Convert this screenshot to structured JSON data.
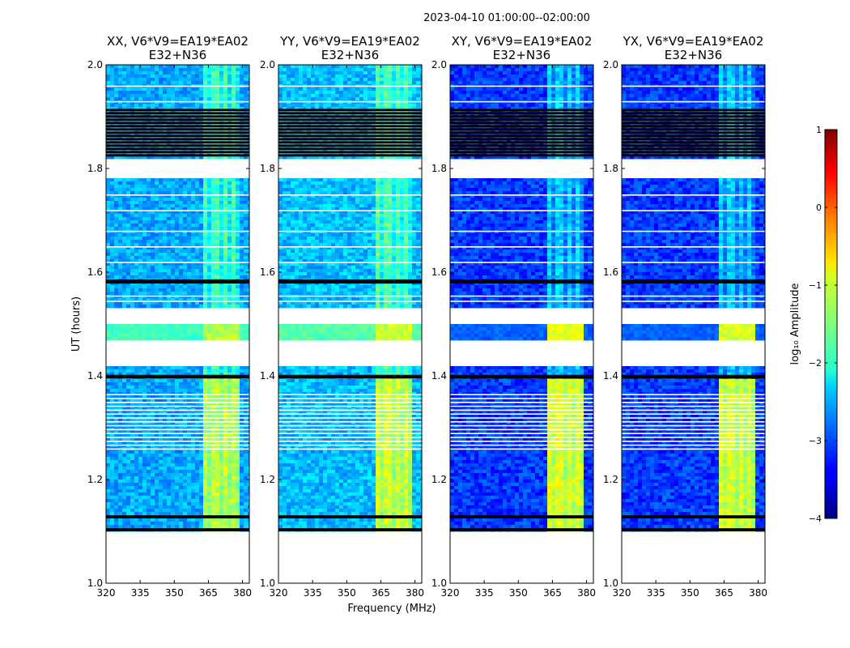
{
  "figure": {
    "suptitle": "2023-04-10  01:00:00--02:00:00",
    "ylabel": "UT (hours)",
    "xlabel": "Frequency (MHz)",
    "colorbar_label": "log₁₀ Amplitude",
    "colorbar_ticks": [
      "1",
      "0",
      "−1",
      "−2",
      "−3",
      "−4"
    ]
  },
  "chart_data": {
    "type": "heatmap",
    "colormap": "jet",
    "x": {
      "label": "Frequency (MHz)",
      "lim": [
        320,
        383
      ],
      "ticks": [
        320,
        335,
        350,
        365,
        380
      ],
      "tick_labels": [
        "320",
        "335",
        "350",
        "365",
        "380"
      ]
    },
    "y": {
      "label": "UT (hours)",
      "lim": [
        1.0,
        2.0
      ],
      "ticks": [
        1.0,
        1.2,
        1.4,
        1.6,
        1.8,
        2.0
      ],
      "tick_labels": [
        "1.0",
        "1.2",
        "1.4",
        "1.6",
        "1.8",
        "2.0"
      ]
    },
    "color_range": [
      -4,
      1
    ],
    "panels": [
      {
        "title_line1": "XX, V6*V9=EA19*EA02",
        "title_line2": "E32+N36",
        "background": -2.55,
        "band_level": -1.25,
        "flagged_level": -1.8,
        "mid_level": -1.45
      },
      {
        "title_line1": "YY, V6*V9=EA19*EA02",
        "title_line2": "E32+N36",
        "background": -2.45,
        "band_level": -1.1,
        "flagged_level": -1.7,
        "mid_level": -1.35
      },
      {
        "title_line1": "XY, V6*V9=EA19*EA02",
        "title_line2": "E32+N36",
        "background": -3.1,
        "band_level": -1.0,
        "flagged_level": -2.9,
        "mid_level": -1.25
      },
      {
        "title_line1": "YX, V6*V9=EA19*EA02",
        "title_line2": "E32+N36",
        "background": -3.1,
        "band_level": -1.05,
        "flagged_level": -2.9,
        "mid_level": -1.3
      }
    ],
    "rfi_band_mhz": [
      363,
      379
    ],
    "rfi_bright_channels_mhz": [
      364,
      368,
      372,
      376
    ],
    "blank_regions_hours": [
      [
        1.0,
        1.1
      ],
      [
        1.42,
        1.47
      ],
      [
        1.5,
        1.53
      ],
      [
        1.78,
        1.82
      ]
    ],
    "black_flag_regions_hours": [
      [
        1.1,
        1.106
      ],
      [
        1.125,
        1.131
      ],
      [
        1.395,
        1.402
      ],
      [
        1.578,
        1.586
      ],
      [
        1.825,
        1.915
      ]
    ],
    "dense_gap_region_hours": [
      1.26,
      1.37
    ]
  }
}
